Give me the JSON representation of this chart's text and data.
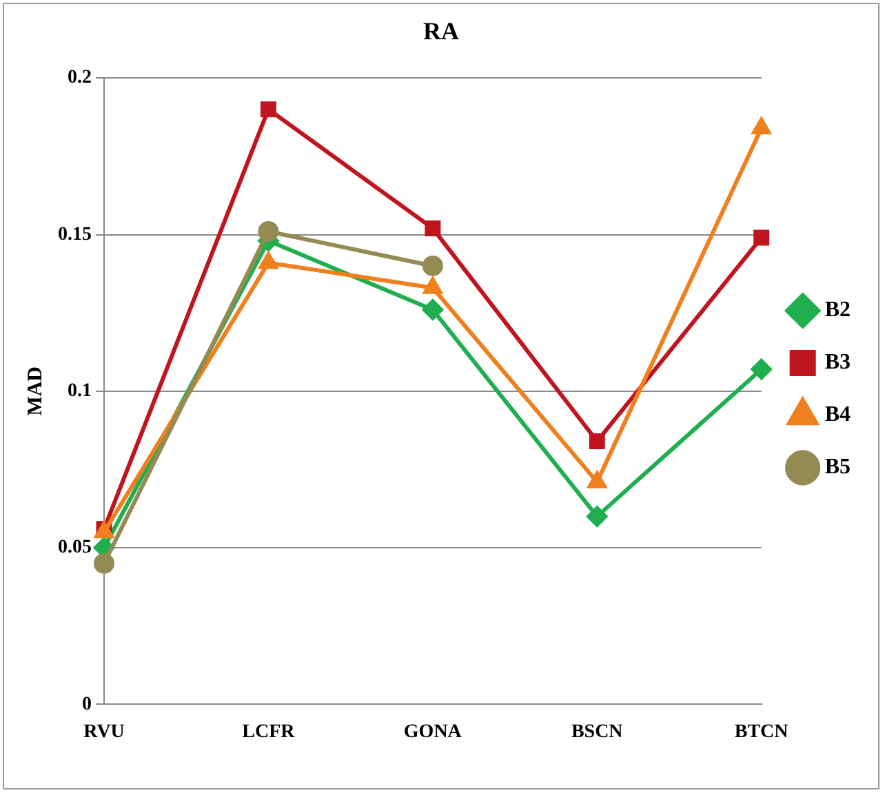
{
  "chart_data": {
    "type": "line",
    "title": "RA",
    "ylabel": "MAD",
    "categories": [
      "RVU",
      "LCFR",
      "GONA",
      "BSCN",
      "BTCN"
    ],
    "series": [
      {
        "name": "B2",
        "color": "#1faf4f",
        "marker": "diamond",
        "values": [
          0.05,
          0.148,
          0.126,
          0.06,
          0.107
        ]
      },
      {
        "name": "B3",
        "color": "#c0141e",
        "marker": "square",
        "values": [
          0.056,
          0.19,
          0.152,
          0.084,
          0.149
        ]
      },
      {
        "name": "B4",
        "color": "#f07f1e",
        "marker": "triangle",
        "values": [
          0.055,
          0.141,
          0.133,
          0.071,
          0.184
        ]
      },
      {
        "name": "B5",
        "color": "#948a54",
        "marker": "circle",
        "values": [
          0.045,
          0.151,
          0.14,
          null,
          null
        ]
      }
    ],
    "ylim": [
      0,
      0.2
    ],
    "yticks": [
      0,
      0.05,
      0.1,
      0.15,
      0.2
    ],
    "grid": "y",
    "legend": "right"
  }
}
